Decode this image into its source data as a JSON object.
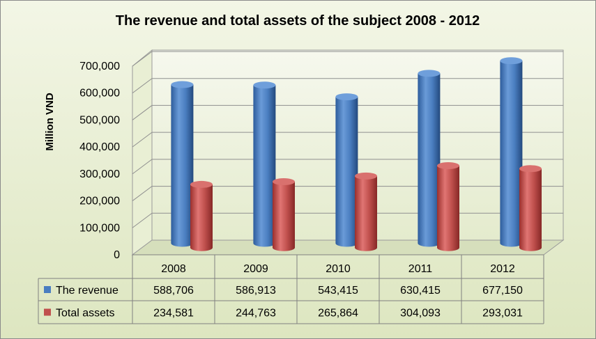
{
  "chart_data": {
    "type": "bar",
    "title": "The revenue and total assets of the subject 2008 - 2012",
    "ylabel": "Million VND",
    "xlabel": "",
    "categories": [
      "2008",
      "2009",
      "2010",
      "2011",
      "2012"
    ],
    "ylim": [
      0,
      700000
    ],
    "yticks": [
      "0",
      "100,000",
      "200,000",
      "300,000",
      "400,000",
      "500,000",
      "600,000",
      "700,000"
    ],
    "series": [
      {
        "name": "The revenue",
        "color": "#4a7ec0",
        "values": [
          588706,
          586913,
          543415,
          630415,
          677150
        ],
        "table_labels": [
          "588,706",
          "586,913",
          "543,415",
          "630,415",
          "677,150"
        ]
      },
      {
        "name": "Total assets",
        "color": "#c0504d",
        "values": [
          234581,
          244763,
          265864,
          304093,
          293031
        ],
        "table_labels": [
          "234,581",
          "244,763",
          "265,864",
          "304,093",
          "293,031"
        ]
      }
    ],
    "grid": true,
    "legend": "data-table"
  }
}
